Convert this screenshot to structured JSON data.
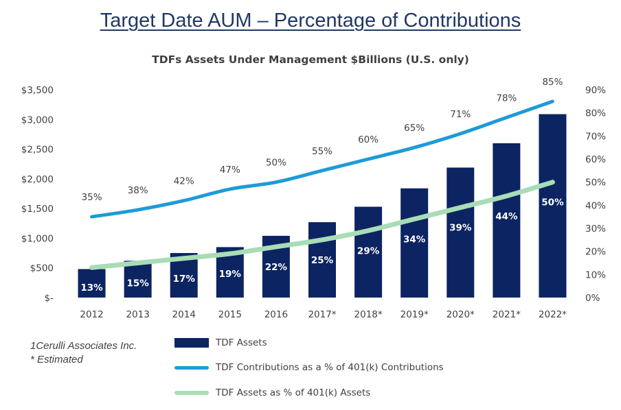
{
  "title": "Target Date AUM – Percentage of Contributions",
  "subtitle": "TDFs Assets Under Management $Billions (U.S. only)",
  "notes": [
    "1Cerulli Associates Inc.",
    "* Estimated"
  ],
  "colors": {
    "bars": "#0c2461",
    "contributions_line": "#1e9bd7",
    "assets_line": "#a8ddb5",
    "text": "#404040"
  },
  "chart_data": {
    "type": "bar",
    "categories": [
      "2012",
      "2013",
      "2014",
      "2015",
      "2016",
      "2017*",
      "2018*",
      "2019*",
      "2020*",
      "2021*",
      "2022*"
    ],
    "series": [
      {
        "name": "TDF Assets",
        "type": "bar",
        "axis": "left",
        "values": [
          480,
          620,
          750,
          850,
          1040,
          1270,
          1530,
          1840,
          2190,
          2600,
          3090
        ]
      },
      {
        "name": "TDF Contributions as a % of 401(k) Contributions",
        "type": "line",
        "axis": "right",
        "values": [
          35,
          38,
          42,
          47,
          50,
          55,
          60,
          65,
          71,
          78,
          85
        ],
        "labels": [
          "35%",
          "38%",
          "42%",
          "47%",
          "50%",
          "55%",
          "60%",
          "65%",
          "71%",
          "78%",
          "85%"
        ]
      },
      {
        "name": "TDF Assets as % of 401(k) Assets",
        "type": "line",
        "axis": "right",
        "values": [
          13,
          15,
          17,
          19,
          22,
          25,
          29,
          34,
          39,
          44,
          50
        ],
        "labels": [
          "13%",
          "15%",
          "17%",
          "19%",
          "22%",
          "25%",
          "29%",
          "34%",
          "39%",
          "44%",
          "50%"
        ]
      }
    ],
    "y_left": {
      "min": 0,
      "max": 3500,
      "step": 500,
      "tick_labels": [
        "$-",
        "$500",
        "$1,000",
        "$1,500",
        "$2,000",
        "$2,500",
        "$3,000",
        "$3,500"
      ]
    },
    "y_right": {
      "min": 0,
      "max": 90,
      "step": 10,
      "tick_labels": [
        "0%",
        "10%",
        "20%",
        "30%",
        "40%",
        "50%",
        "60%",
        "70%",
        "80%",
        "90%"
      ]
    },
    "grid": false,
    "legend_position": "bottom"
  }
}
